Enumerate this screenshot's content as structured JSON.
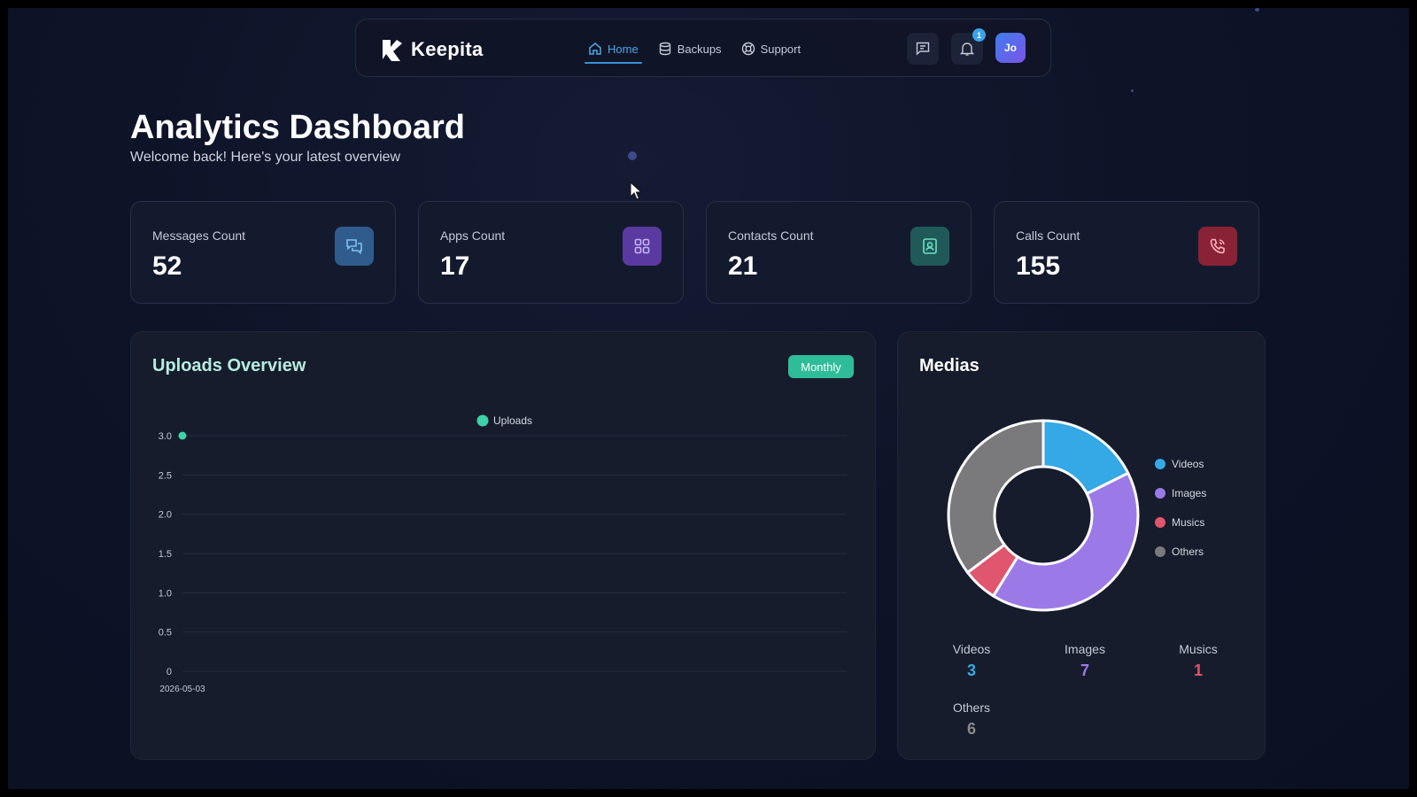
{
  "app": {
    "name": "Keepita"
  },
  "nav": {
    "links": [
      {
        "label": "Home",
        "icon": "home-icon",
        "active": true
      },
      {
        "label": "Backups",
        "icon": "database-icon",
        "active": false
      },
      {
        "label": "Support",
        "icon": "lifebuoy-icon",
        "active": false
      }
    ],
    "notification_count": "1",
    "avatar_initials": "Jo"
  },
  "header": {
    "title": "Analytics Dashboard",
    "subtitle": "Welcome back! Here's your latest overview"
  },
  "stats": [
    {
      "label": "Messages Count",
      "value": "52",
      "icon": "chat-icon",
      "color": "#2f5c8c"
    },
    {
      "label": "Apps Count",
      "value": "17",
      "icon": "apps-grid-icon",
      "color": "#5a3aa0"
    },
    {
      "label": "Contacts Count",
      "value": "21",
      "icon": "contact-icon",
      "color": "#1f5a58"
    },
    {
      "label": "Calls Count",
      "value": "155",
      "icon": "phone-icon",
      "color": "#8a2236"
    }
  ],
  "uploads": {
    "title": "Uploads Overview",
    "period_button": "Monthly"
  },
  "medias": {
    "title": "Medias",
    "items": [
      {
        "label": "Videos",
        "value": "3",
        "color": "#35a8e6"
      },
      {
        "label": "Images",
        "value": "7",
        "color": "#9b7ae8"
      },
      {
        "label": "Musics",
        "value": "1",
        "color": "#e0566f"
      },
      {
        "label": "Others",
        "value": "6",
        "color": "#7a7a7c"
      }
    ]
  },
  "chart_data": [
    {
      "type": "line",
      "x": [
        "2026-05-03"
      ],
      "series": [
        {
          "name": "Uploads",
          "values": [
            3
          ],
          "color": "#3fd1a8"
        }
      ],
      "ylim": [
        0,
        3
      ],
      "yticks": [
        "0",
        "0.5",
        "1.0",
        "1.5",
        "2.0",
        "2.5",
        "3.0"
      ],
      "grid": true,
      "legend": "top-center"
    },
    {
      "type": "pie",
      "donut": true,
      "categories": [
        "Videos",
        "Images",
        "Musics",
        "Others"
      ],
      "values": [
        3,
        7,
        1,
        6
      ],
      "colors": [
        "#35a8e6",
        "#9b7ae8",
        "#e0566f",
        "#7a7a7c"
      ],
      "legend": "right"
    }
  ]
}
